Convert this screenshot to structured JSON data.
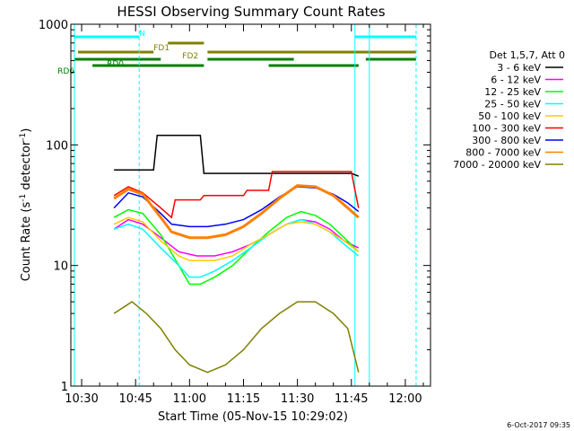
{
  "chart_data": {
    "type": "line",
    "title": "HESSI Observing Summary Count Rates",
    "xlabel": "Start Time (05-Nov-15 10:29:02)",
    "ylabel_main": "Count Rate (s",
    "ylabel_sup1": "-1",
    "ylabel_mid": " detector",
    "ylabel_sup2": "-1",
    "ylabel_end": ")",
    "yscale": "log",
    "xlim": [
      "10:27",
      "12:07"
    ],
    "ylim": [
      1,
      1000
    ],
    "x_ticks": [
      "10:30",
      "10:45",
      "11:00",
      "11:15",
      "11:30",
      "11:45",
      "12:00"
    ],
    "y_ticks": [
      "1",
      "10",
      "100",
      "1000"
    ],
    "legend_title": "Det 1,5,7, Att 0",
    "legend_position": "right",
    "footer": "6-Oct-2017 09:35",
    "series": [
      {
        "name": "3 - 6 keV",
        "color": "#000000",
        "points": [
          [
            "10:39",
            62
          ],
          [
            "10:50",
            62
          ],
          [
            "10:51",
            120
          ],
          [
            "11:03",
            120
          ],
          [
            "11:04",
            58
          ],
          [
            "11:45",
            58
          ],
          [
            "11:47",
            55
          ]
        ]
      },
      {
        "name": "6 - 12 keV",
        "color": "#ff00ff",
        "points": [
          [
            "10:39",
            20
          ],
          [
            "10:43",
            24
          ],
          [
            "10:47",
            22
          ],
          [
            "10:52",
            17
          ],
          [
            "10:57",
            13
          ],
          [
            "11:02",
            12
          ],
          [
            "11:07",
            12
          ],
          [
            "11:12",
            13
          ],
          [
            "11:17",
            15
          ],
          [
            "11:22",
            18
          ],
          [
            "11:27",
            22
          ],
          [
            "11:31",
            24
          ],
          [
            "11:35",
            23
          ],
          [
            "11:39",
            20
          ],
          [
            "11:43",
            16
          ],
          [
            "11:47",
            14
          ]
        ]
      },
      {
        "name": "12 - 25 keV",
        "color": "#00ff00",
        "points": [
          [
            "10:39",
            25
          ],
          [
            "10:43",
            29
          ],
          [
            "10:47",
            27
          ],
          [
            "10:52",
            18
          ],
          [
            "10:57",
            10
          ],
          [
            "11:00",
            7
          ],
          [
            "11:03",
            7
          ],
          [
            "11:07",
            8
          ],
          [
            "11:12",
            10
          ],
          [
            "11:17",
            14
          ],
          [
            "11:22",
            19
          ],
          [
            "11:27",
            25
          ],
          [
            "11:31",
            28
          ],
          [
            "11:35",
            26
          ],
          [
            "11:39",
            22
          ],
          [
            "11:43",
            17
          ],
          [
            "11:47",
            13
          ]
        ]
      },
      {
        "name": "25 - 50 keV",
        "color": "#00ffff",
        "points": [
          [
            "10:39",
            20
          ],
          [
            "10:43",
            22
          ],
          [
            "10:47",
            20
          ],
          [
            "10:52",
            14
          ],
          [
            "10:57",
            10
          ],
          [
            "11:00",
            8
          ],
          [
            "11:03",
            8
          ],
          [
            "11:07",
            9
          ],
          [
            "11:12",
            11
          ],
          [
            "11:17",
            14
          ],
          [
            "11:22",
            18
          ],
          [
            "11:27",
            22
          ],
          [
            "11:31",
            24
          ],
          [
            "11:35",
            22
          ],
          [
            "11:39",
            19
          ],
          [
            "11:43",
            15
          ],
          [
            "11:47",
            12
          ]
        ]
      },
      {
        "name": "50 - 100 keV",
        "color": "#ffcc00",
        "points": [
          [
            "10:39",
            22
          ],
          [
            "10:43",
            25
          ],
          [
            "10:47",
            23
          ],
          [
            "10:52",
            16
          ],
          [
            "10:57",
            12
          ],
          [
            "11:00",
            11
          ],
          [
            "11:03",
            11
          ],
          [
            "11:07",
            11
          ],
          [
            "11:12",
            12
          ],
          [
            "11:17",
            15
          ],
          [
            "11:22",
            18
          ],
          [
            "11:27",
            22
          ],
          [
            "11:31",
            23
          ],
          [
            "11:35",
            22
          ],
          [
            "11:39",
            19
          ],
          [
            "11:43",
            16
          ],
          [
            "11:47",
            13
          ]
        ]
      },
      {
        "name": "100 - 300 keV",
        "color": "#ff0000",
        "points": [
          [
            "10:39",
            38
          ],
          [
            "10:43",
            45
          ],
          [
            "10:47",
            40
          ],
          [
            "10:52",
            30
          ],
          [
            "10:55",
            25
          ],
          [
            "10:56",
            35
          ],
          [
            "11:03",
            35
          ],
          [
            "11:04",
            38
          ],
          [
            "11:15",
            38
          ],
          [
            "11:16",
            42
          ],
          [
            "11:22",
            42
          ],
          [
            "11:23",
            60
          ],
          [
            "11:45",
            60
          ],
          [
            "11:46",
            42
          ],
          [
            "11:47",
            30
          ]
        ]
      },
      {
        "name": "300 - 800 keV",
        "color": "#0000ff",
        "points": [
          [
            "10:39",
            30
          ],
          [
            "10:43",
            40
          ],
          [
            "10:47",
            37
          ],
          [
            "10:52",
            27
          ],
          [
            "10:55",
            22
          ],
          [
            "11:00",
            21
          ],
          [
            "11:05",
            21
          ],
          [
            "11:10",
            22
          ],
          [
            "11:15",
            24
          ],
          [
            "11:20",
            29
          ],
          [
            "11:25",
            37
          ],
          [
            "11:30",
            45
          ],
          [
            "11:35",
            44
          ],
          [
            "11:40",
            39
          ],
          [
            "11:44",
            33
          ],
          [
            "11:47",
            28
          ]
        ]
      },
      {
        "name": "800 - 7000 keV",
        "color": "#ff8000",
        "points": [
          [
            "10:39",
            36
          ],
          [
            "10:43",
            43
          ],
          [
            "10:47",
            39
          ],
          [
            "10:52",
            25
          ],
          [
            "10:55",
            19
          ],
          [
            "11:00",
            17
          ],
          [
            "11:05",
            17
          ],
          [
            "11:10",
            18
          ],
          [
            "11:15",
            21
          ],
          [
            "11:20",
            27
          ],
          [
            "11:25",
            36
          ],
          [
            "11:30",
            46
          ],
          [
            "11:35",
            45
          ],
          [
            "11:40",
            38
          ],
          [
            "11:44",
            30
          ],
          [
            "11:47",
            25
          ]
        ]
      },
      {
        "name": "7000 - 20000 keV",
        "color": "#808000",
        "points": [
          [
            "10:39",
            4
          ],
          [
            "10:44",
            5
          ],
          [
            "10:48",
            4
          ],
          [
            "10:52",
            3
          ],
          [
            "10:56",
            2
          ],
          [
            "11:00",
            1.5
          ],
          [
            "11:05",
            1.3
          ],
          [
            "11:10",
            1.5
          ],
          [
            "11:15",
            2
          ],
          [
            "11:20",
            3
          ],
          [
            "11:25",
            4
          ],
          [
            "11:30",
            5
          ],
          [
            "11:35",
            5
          ],
          [
            "11:40",
            4
          ],
          [
            "11:44",
            3
          ],
          [
            "11:47",
            1.3
          ]
        ]
      }
    ],
    "flags": [
      {
        "label": "N",
        "color": "#00ffff",
        "segments": [
          [
            "10:28",
            "10:46"
          ],
          [
            "11:46",
            "12:03"
          ]
        ]
      },
      {
        "label": "FD1",
        "color": "#808000",
        "segments": [
          [
            "10:54",
            "11:04"
          ]
        ]
      },
      {
        "label": "FD2",
        "color": "#808000",
        "segments": [
          [
            "10:29",
            "10:50"
          ],
          [
            "11:05",
            "12:03"
          ]
        ]
      },
      {
        "label": "RD0",
        "color": "#008000",
        "segments": [
          [
            "10:28",
            "10:52"
          ],
          [
            "11:05",
            "11:29"
          ],
          [
            "11:49",
            "12:03"
          ]
        ]
      },
      {
        "label": "RD6",
        "color": "#008000",
        "segments": [
          [
            "10:33",
            "11:04"
          ],
          [
            "11:22",
            "11:47"
          ]
        ]
      }
    ],
    "vlines_solid": [
      "10:28",
      "11:46",
      "11:50"
    ],
    "vlines_dashed": [
      "10:46",
      "12:03"
    ]
  }
}
